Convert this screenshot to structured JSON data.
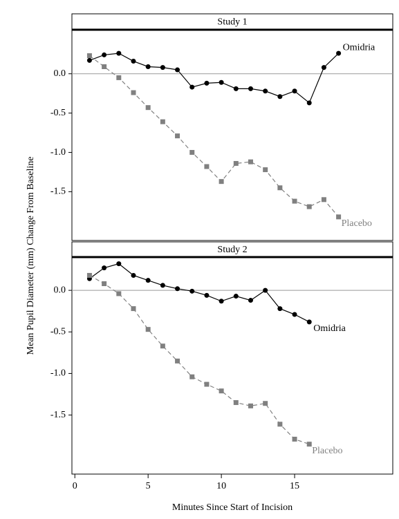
{
  "axis_labels": {
    "x": "Minutes Since Start of Incision",
    "y": "Mean Pupil Diameter (mm) Change From Baseline"
  },
  "chart_data": [
    {
      "type": "line",
      "title": "Study 1",
      "xlim": [
        -0.2,
        21.7
      ],
      "ylim": [
        -2.12,
        0.56
      ],
      "yticks": [
        {
          "value": 0,
          "label": "0.0"
        },
        -0.5,
        {
          "value": -1,
          "label": "-1.0"
        },
        -1.5
      ],
      "reference_line": 0,
      "series": [
        {
          "name": "Omidria",
          "color": "#000000",
          "marker": "circle",
          "dashed": false,
          "x": [
            1,
            2,
            3,
            4,
            5,
            6,
            7,
            8,
            9,
            10,
            11,
            12,
            13,
            14,
            15,
            16,
            17,
            18
          ],
          "values": [
            0.17,
            0.24,
            0.26,
            0.16,
            0.09,
            0.08,
            0.05,
            -0.17,
            -0.12,
            -0.11,
            -0.19,
            -0.19,
            -0.22,
            -0.29,
            -0.22,
            -0.37,
            0.08,
            0.26
          ]
        },
        {
          "name": "Placebo",
          "color": "#808080",
          "marker": "square",
          "dashed": true,
          "x": [
            1,
            2,
            3,
            4,
            5,
            6,
            7,
            8,
            9,
            10,
            11,
            12,
            13,
            14,
            15,
            16,
            17,
            18
          ],
          "values": [
            0.23,
            0.09,
            -0.05,
            -0.24,
            -0.43,
            -0.61,
            -0.79,
            -1.0,
            -1.18,
            -1.37,
            -1.14,
            -1.12,
            -1.22,
            -1.45,
            -1.62,
            -1.69,
            -1.6,
            -1.82
          ]
        }
      ]
    },
    {
      "type": "line",
      "title": "Study 2",
      "xlim": [
        -0.2,
        21.7
      ],
      "ylim": [
        -2.21,
        0.4
      ],
      "xticks": [
        0,
        5,
        10,
        15
      ],
      "yticks": [
        {
          "value": 0,
          "label": "0.0"
        },
        -0.5,
        {
          "value": -1,
          "label": "-1.0"
        },
        -1.5
      ],
      "reference_line": 0,
      "series": [
        {
          "name": "Omidria",
          "color": "#000000",
          "marker": "circle",
          "dashed": false,
          "x": [
            1,
            2,
            3,
            4,
            5,
            6,
            7,
            8,
            9,
            10,
            11,
            12,
            13,
            14,
            15,
            16
          ],
          "values": [
            0.14,
            0.27,
            0.32,
            0.18,
            0.12,
            0.06,
            0.02,
            -0.01,
            -0.06,
            -0.13,
            -0.07,
            -0.12,
            0.0,
            -0.22,
            -0.29,
            -0.38
          ]
        },
        {
          "name": "Placebo",
          "color": "#808080",
          "marker": "square",
          "dashed": true,
          "x": [
            1,
            2,
            3,
            4,
            5,
            6,
            7,
            8,
            9,
            10,
            11,
            12,
            13,
            14,
            15,
            16
          ],
          "values": [
            0.18,
            0.08,
            -0.04,
            -0.22,
            -0.47,
            -0.67,
            -0.85,
            -1.04,
            -1.13,
            -1.21,
            -1.35,
            -1.39,
            -1.36,
            -1.61,
            -1.79,
            -1.85
          ]
        }
      ]
    }
  ]
}
